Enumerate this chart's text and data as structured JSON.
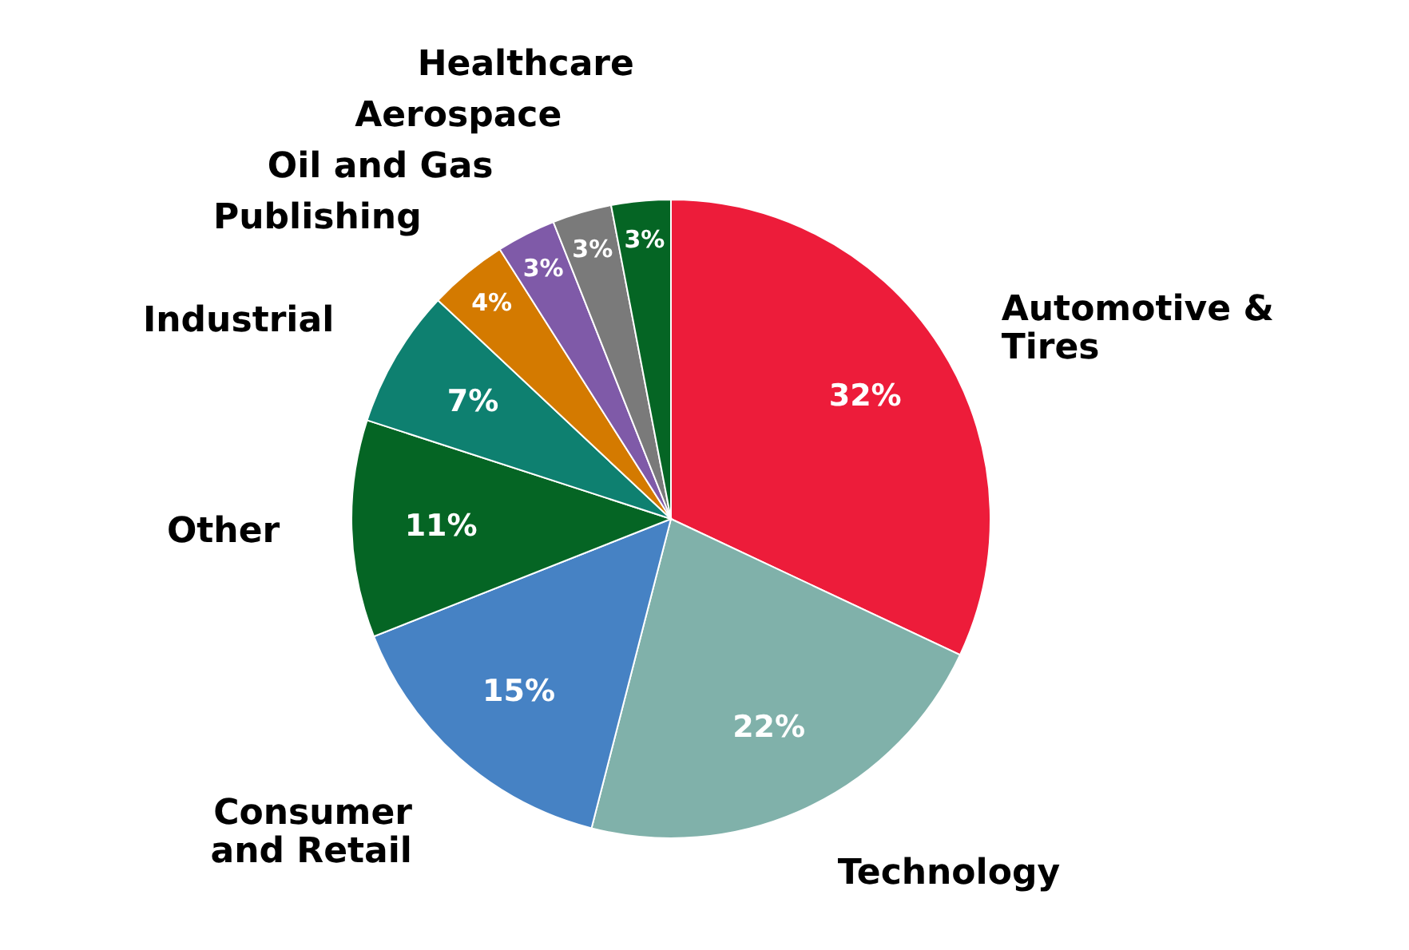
{
  "chart_data": {
    "type": "pie",
    "categories": [
      "Automotive &\nTires",
      "Technology",
      "Consumer\nand Retail",
      "Other",
      "Industrial",
      "Publishing",
      "Oil and Gas",
      "Aerospace",
      "Healthcare"
    ],
    "values": [
      32,
      22,
      15,
      11,
      7,
      4,
      3,
      3,
      3
    ],
    "value_labels": [
      "32%",
      "22%",
      "15%",
      "11%",
      "7%",
      "4%",
      "3%",
      "3%",
      "3%"
    ],
    "colors": [
      "#ed1c3a",
      "#80b1aa",
      "#4682c4",
      "#056524",
      "#0e8070",
      "#d47a00",
      "#7f5aa8",
      "#7a7a7a",
      "#056524"
    ]
  }
}
